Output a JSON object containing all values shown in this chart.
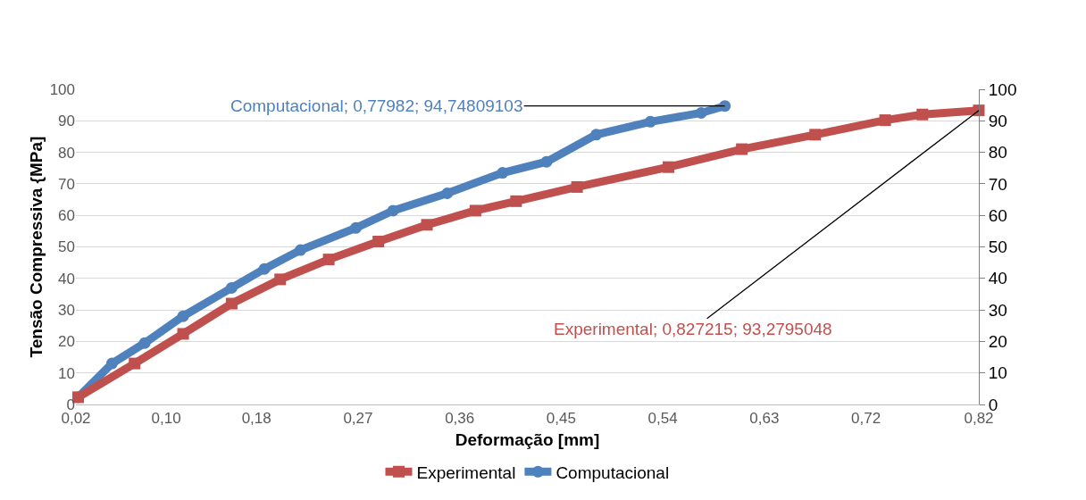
{
  "chart_data": {
    "type": "line",
    "xlabel": "Deformação [mm]",
    "ylabel": "Tensão Compressiva {MPa]",
    "xlim": [
      0.02,
      0.82
    ],
    "xticks": [
      {
        "value": 0.02,
        "label": "0,02"
      },
      {
        "value": 0.1,
        "label": "0,10"
      },
      {
        "value": 0.18,
        "label": "0,18"
      },
      {
        "value": 0.27,
        "label": "0,27"
      },
      {
        "value": 0.36,
        "label": "0,36"
      },
      {
        "value": 0.45,
        "label": "0,45"
      },
      {
        "value": 0.54,
        "label": "0,54"
      },
      {
        "value": 0.63,
        "label": "0,63"
      },
      {
        "value": 0.72,
        "label": "0,72"
      },
      {
        "value": 0.82,
        "label": "0,82"
      }
    ],
    "ylim": [
      0,
      100
    ],
    "yticks": [
      0,
      10,
      20,
      30,
      40,
      50,
      60,
      70,
      80,
      90,
      100
    ],
    "y2lim": [
      0,
      100
    ],
    "y2ticks": [
      0,
      10,
      20,
      30,
      40,
      50,
      60,
      70,
      80,
      90,
      100
    ],
    "grid": "y",
    "legend": "bottom",
    "series": [
      {
        "name": "Experimental",
        "color": "#c0504d",
        "marker": "square",
        "axis": "y2",
        "x": [
          0.022,
          0.072,
          0.115,
          0.158,
          0.201,
          0.244,
          0.288,
          0.331,
          0.374,
          0.41,
          0.464,
          0.545,
          0.61,
          0.675,
          0.737,
          0.77,
          0.82
        ],
        "values": [
          2.3,
          13,
          22.4,
          32,
          39.7,
          46,
          51.7,
          57,
          61.5,
          64.5,
          69,
          75.3,
          81,
          85.6,
          90.2,
          92,
          93.3
        ]
      },
      {
        "name": "Computacional",
        "color": "#4f81bd",
        "marker": "circle",
        "x": [
          0.022,
          0.052,
          0.081,
          0.115,
          0.158,
          0.187,
          0.219,
          0.268,
          0.301,
          0.349,
          0.398,
          0.437,
          0.481,
          0.529,
          0.574,
          0.595
        ],
        "values": [
          2.3,
          13,
          19.5,
          28,
          37,
          43,
          49,
          56,
          61.5,
          67,
          73.5,
          77,
          85.6,
          89.7,
          92.5,
          94.7
        ]
      }
    ],
    "annotations": [
      {
        "text": "Experimental; 0,827215; 93,2795048",
        "x": 0.82,
        "y": 93.3
      },
      {
        "text": "Computacional; 0,77982; 94,74809103",
        "x": 0.595,
        "y": 94.7
      }
    ]
  }
}
